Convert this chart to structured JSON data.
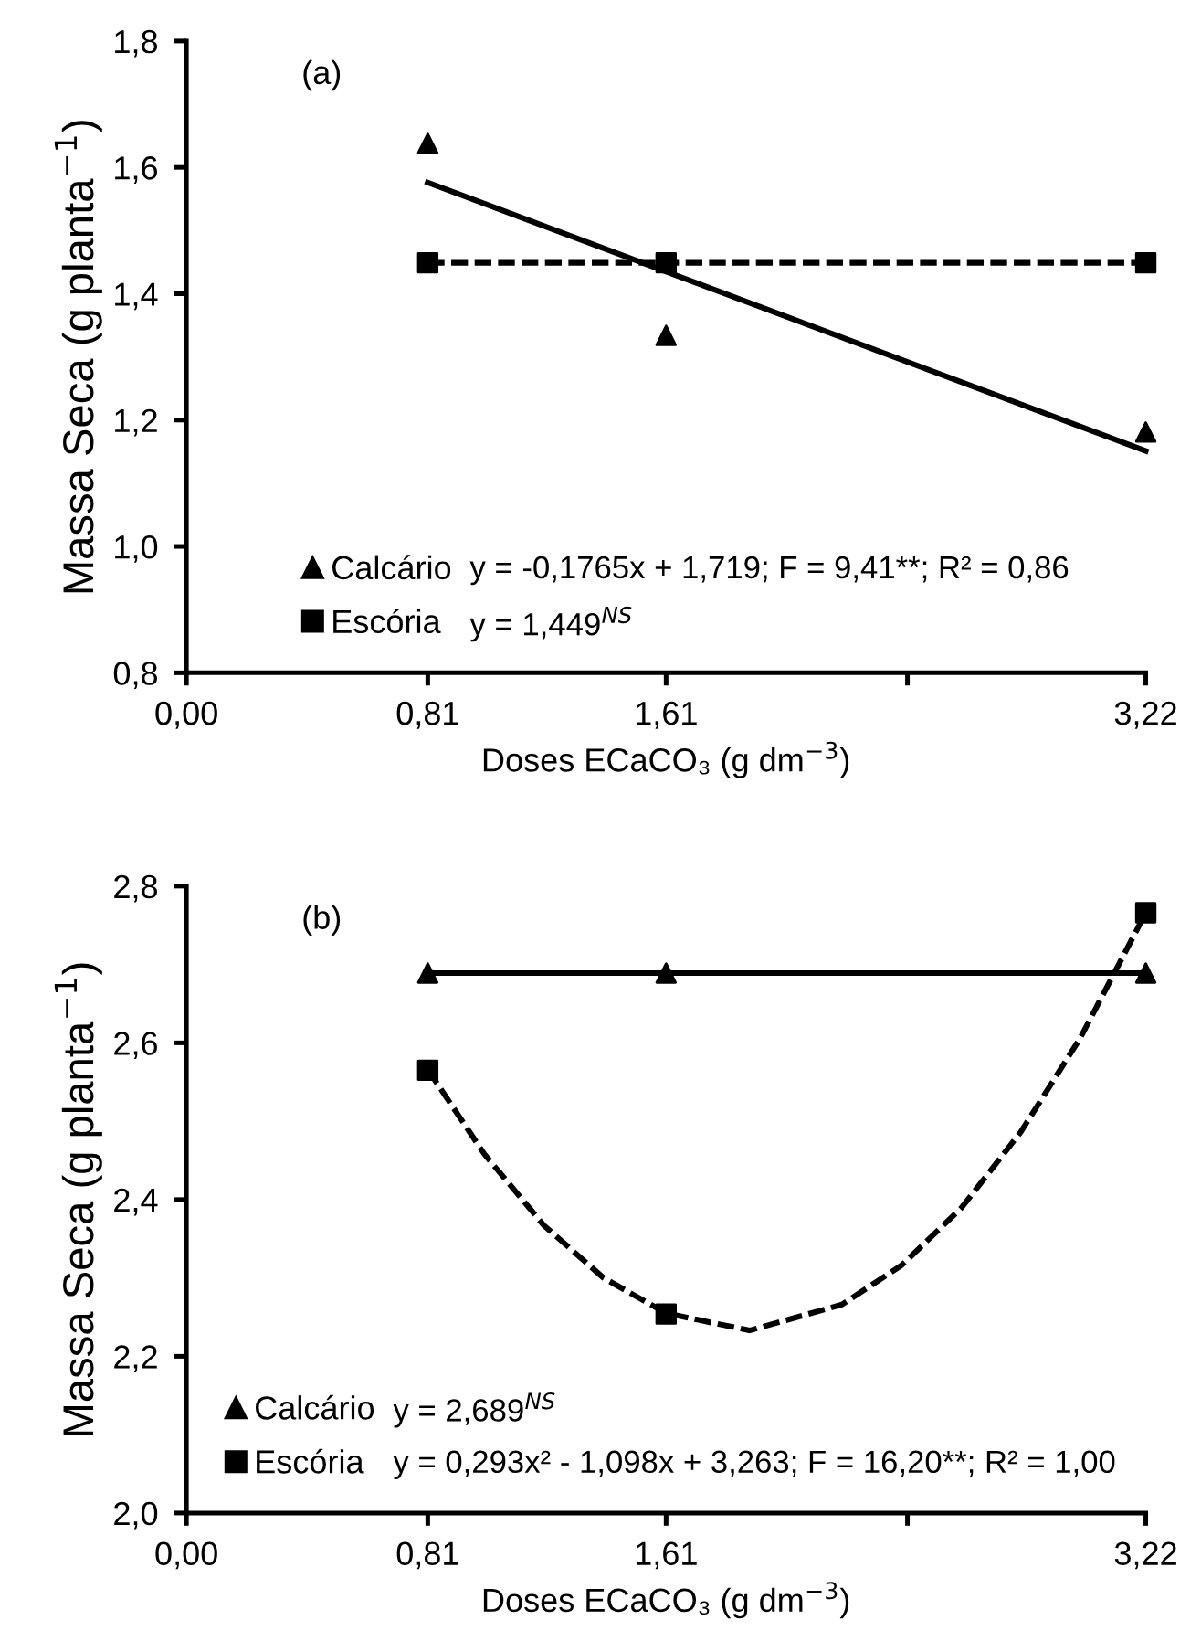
{
  "chart_data": [
    {
      "type": "scatter",
      "xlabel": "Doses ECaCO₃ (g dm$^{−3}$)",
      "ylabel": "Massa Seca (g planta$^{−1}$)",
      "xlim": [
        0,
        3.22
      ],
      "xticks": [
        {
          "value": 0,
          "label": "0,00"
        },
        {
          "value": 0.81,
          "label": "0,81"
        },
        {
          "value": 1.61,
          "label": "1,61"
        },
        {
          "value": 2.42,
          "label": null
        },
        {
          "value": 3.22,
          "label": "3,22"
        }
      ],
      "ylim": [
        0.8,
        1.8
      ],
      "yticks": [
        {
          "value": 0.8,
          "label": "0,8"
        },
        {
          "value": 1.0,
          "label": "1,0"
        },
        {
          "value": 1.2,
          "label": "1,2"
        },
        {
          "value": 1.4,
          "label": "1,4"
        },
        {
          "value": 1.6,
          "label": "1,6"
        },
        {
          "value": 1.8,
          "label": "1,8"
        }
      ],
      "grid": false,
      "legend": "bottom left",
      "series": [
        {
          "name": "Calcário",
          "marker": "triangle",
          "color": "#000000",
          "x": [
            0.81,
            1.61,
            3.22
          ],
          "values": [
            1.638,
            1.334,
            1.181
          ]
        },
        {
          "name": "Escória",
          "marker": "square",
          "color": "#000000",
          "x": [
            0.81,
            1.61,
            3.22
          ],
          "values": [
            1.449,
            1.449,
            1.449
          ]
        },
        {
          "type": "line",
          "line_style": "solid",
          "color": "#000000",
          "x": [
            0.81,
            3.22
          ],
          "values": [
            1.576,
            1.151
          ]
        },
        {
          "type": "line",
          "line_style": "dashed",
          "color": "#000000",
          "x": [
            0.81,
            3.22
          ],
          "values": [
            1.449,
            1.449
          ]
        }
      ],
      "annotations": [
        "(a)",
        "y = -0,1765x + 1,719; F = 9,41**; R² = 0,86",
        "y = 1,449$^{NS}$"
      ]
    },
    {
      "type": "scatter",
      "xlabel": "Doses ECaCO₃ (g dm$^{−3}$)",
      "ylabel": "Massa Seca (g planta$^{−1}$)",
      "xlim": [
        0,
        3.22
      ],
      "xticks": [
        {
          "value": 0,
          "label": "0,00"
        },
        {
          "value": 0.81,
          "label": "0,81"
        },
        {
          "value": 1.61,
          "label": "1,61"
        },
        {
          "value": 2.42,
          "label": null
        },
        {
          "value": 3.22,
          "label": "3,22"
        }
      ],
      "ylim": [
        2.0,
        2.8
      ],
      "yticks": [
        {
          "value": 2.0,
          "label": "2,0"
        },
        {
          "value": 2.2,
          "label": "2,2"
        },
        {
          "value": 2.4,
          "label": "2,4"
        },
        {
          "value": 2.6,
          "label": "2,6"
        },
        {
          "value": 2.8,
          "label": "2,8"
        }
      ],
      "grid": false,
      "legend": "bottom left",
      "series": [
        {
          "name": "Calcário",
          "marker": "triangle",
          "color": "#000000",
          "x": [
            0.81,
            1.61,
            3.22
          ],
          "values": [
            2.689,
            2.689,
            2.689
          ]
        },
        {
          "name": "Escória",
          "marker": "square",
          "color": "#000000",
          "x": [
            0.81,
            1.61,
            3.22
          ],
          "values": [
            2.565,
            2.254,
            2.766
          ]
        },
        {
          "type": "line",
          "line_style": "solid",
          "color": "#000000",
          "x": [
            0.81,
            3.22
          ],
          "values": [
            2.689,
            2.689
          ]
        },
        {
          "type": "line",
          "line_style": "dashed",
          "color": "#000000",
          "x": [
            0.81,
            1.0,
            1.2,
            1.4,
            1.61,
            1.89,
            2.2,
            2.4,
            2.6,
            2.8,
            3.0,
            3.22
          ],
          "values": [
            2.566,
            2.458,
            2.367,
            2.3,
            2.255,
            2.233,
            2.266,
            2.316,
            2.389,
            2.486,
            2.606,
            2.766
          ]
        }
      ],
      "annotations": [
        "(b)",
        "y = 2,689$^{NS}$",
        "y = 0,293x² - 1,098x + 3,263; F = 16,20**; R² = 1,00"
      ]
    }
  ]
}
